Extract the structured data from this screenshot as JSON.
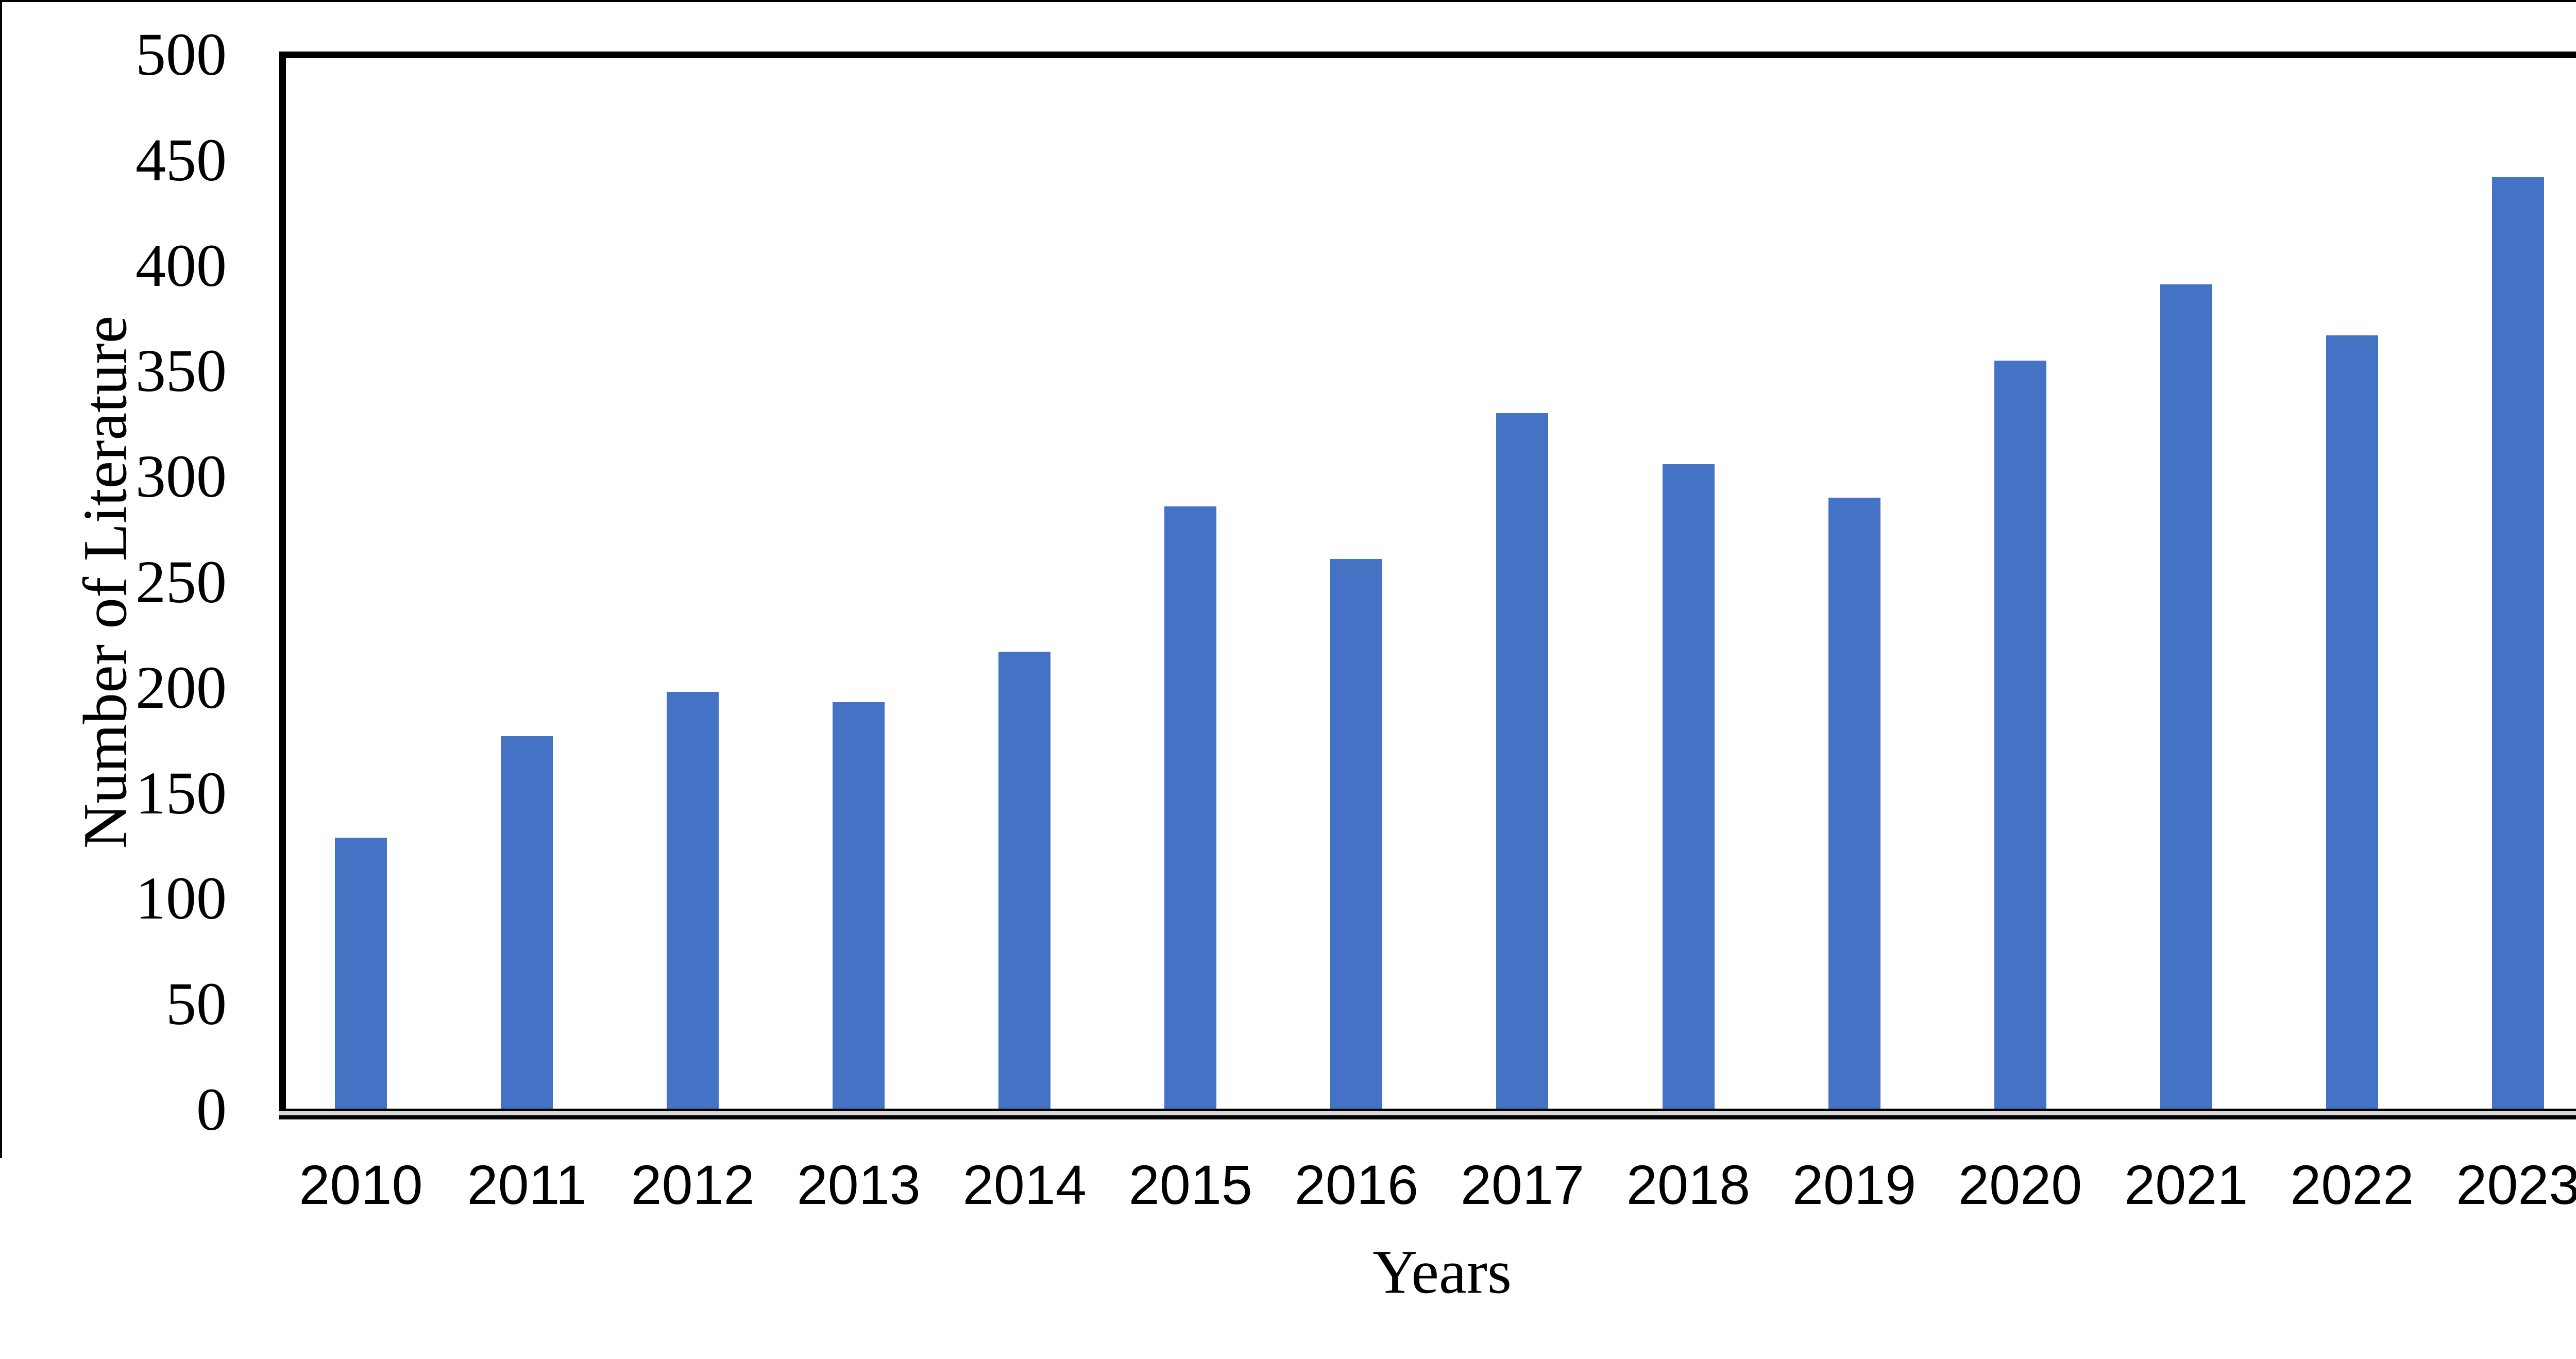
{
  "chart_data": {
    "type": "bar",
    "title": "",
    "xlabel": "Years",
    "ylabel": "Number of Literature",
    "categories": [
      "2010",
      "2011",
      "2012",
      "2013",
      "2014",
      "2015",
      "2016",
      "2017",
      "2018",
      "2019",
      "2020",
      "2021",
      "2022",
      "2023"
    ],
    "values": [
      129,
      177,
      198,
      193,
      217,
      286,
      261,
      330,
      306,
      290,
      355,
      391,
      367,
      442
    ],
    "ylim": [
      0,
      500
    ],
    "ytick_step": 50,
    "yticks": [
      0,
      50,
      100,
      150,
      200,
      250,
      300,
      350,
      400,
      450,
      500
    ],
    "grid": "off",
    "legend": "none",
    "bar_color": "#4472C4",
    "axis_color": "#000000",
    "baseline_gray": "#d9d9d9",
    "background_color": "#ffffff"
  }
}
